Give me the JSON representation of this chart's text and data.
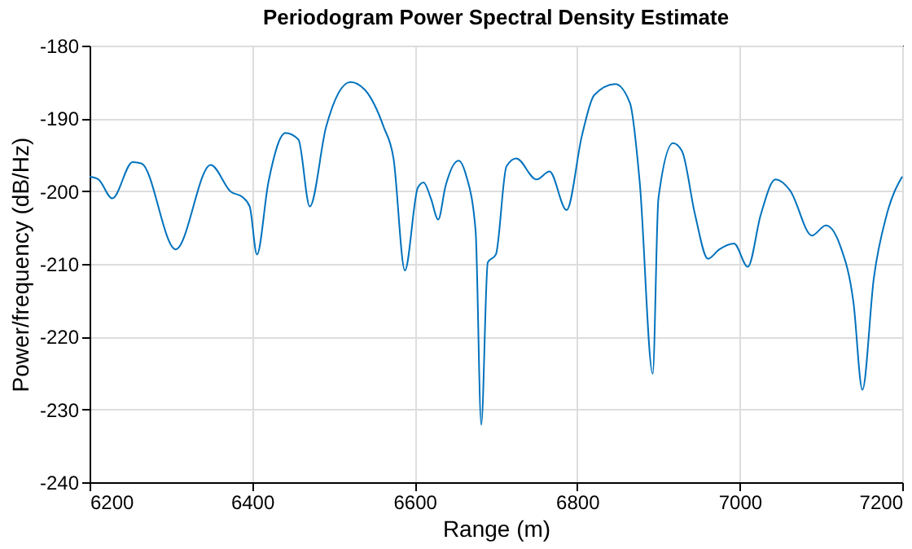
{
  "chart_data": {
    "type": "line",
    "title": "Periodogram Power Spectral Density Estimate",
    "xlabel": "Range (m)",
    "ylabel": "Power/frequency (dB/Hz)",
    "x": [
      6200,
      6211,
      6228,
      6253,
      6264,
      6306,
      6349,
      6374,
      6388,
      6397,
      6406,
      6420,
      6441,
      6457,
      6471,
      6491,
      6521,
      6539,
      6562,
      6574,
      6588,
      6604,
      6611,
      6620,
      6629,
      6638,
      6654,
      6663,
      6675,
      6682,
      6690,
      6700,
      6713,
      6725,
      6750,
      6766,
      6787,
      6806,
      6821,
      6847,
      6865,
      6877,
      6893,
      6900,
      6918,
      6929,
      6945,
      6961,
      6975,
      6993,
      7010,
      7026,
      7044,
      7062,
      7089,
      7106,
      7124,
      7140,
      7151,
      7165,
      7181,
      7200
    ],
    "series": [
      {
        "color": "#0072bd",
        "values": [
          -198.0,
          -198.4,
          -201.0,
          -196.0,
          -196.2,
          -208.0,
          -196.4,
          -200.1,
          -200.8,
          -202.1,
          -208.7,
          -198.8,
          -192.0,
          -192.9,
          -202.1,
          -191.2,
          -185.0,
          -186.1,
          -191.2,
          -195.5,
          -210.9,
          -199.5,
          -198.8,
          -201.0,
          -203.9,
          -199.3,
          -195.8,
          -197.7,
          -205.4,
          -232.1,
          -209.8,
          -208.7,
          -196.6,
          -195.5,
          -198.4,
          -197.3,
          -202.6,
          -192.3,
          -186.8,
          -185.3,
          -187.9,
          -198.8,
          -225.1,
          -201.0,
          -193.4,
          -194.5,
          -203.2,
          -209.3,
          -208.0,
          -207.2,
          -210.4,
          -203.2,
          -198.4,
          -199.9,
          -206.1,
          -204.7,
          -207.6,
          -215.3,
          -227.3,
          -212.0,
          -203.2,
          -198.0
        ]
      }
    ],
    "xlim": [
      6200,
      7200
    ],
    "xticks": [
      6200,
      6400,
      6600,
      6800,
      7000,
      7200
    ],
    "ylim": [
      -240,
      -180
    ],
    "yticks": [
      -240,
      -230,
      -220,
      -210,
      -200,
      -190,
      -180
    ],
    "grid": true,
    "marker": "none",
    "line_style": "solid"
  }
}
